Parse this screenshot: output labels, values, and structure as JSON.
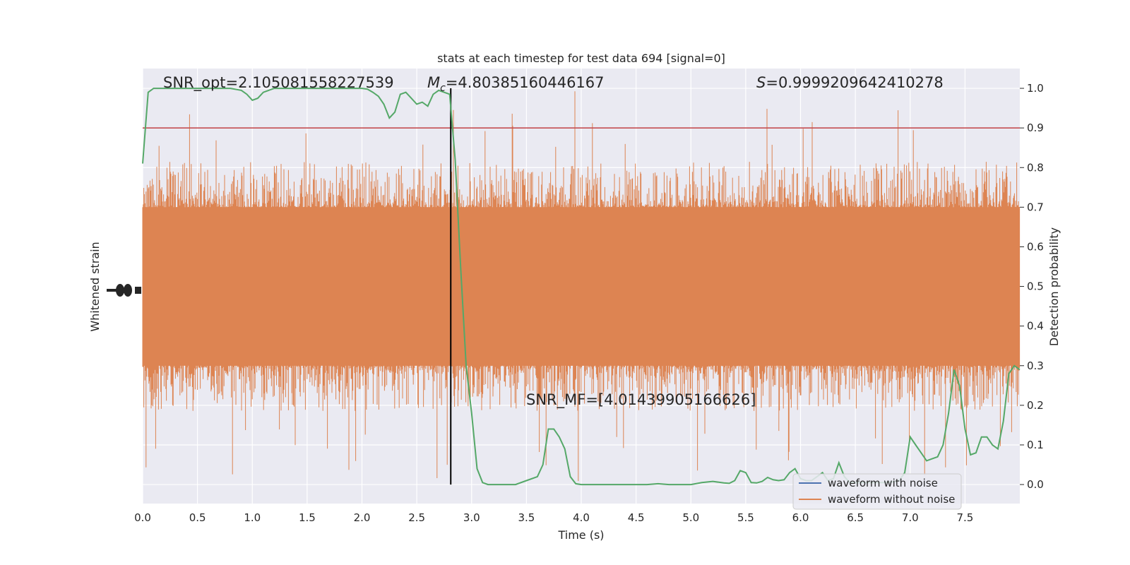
{
  "chart_data": {
    "type": "line",
    "title": "stats at each timestep for test data 694 [signal=0]",
    "xlabel": "Time (s)",
    "ylabel_left": "Whitened strain",
    "ylabel_right": "Detection probability",
    "xlim": [
      0,
      8
    ],
    "ylim_right": [
      -0.048,
      1.05
    ],
    "x_ticks": [
      "0.0",
      "0.5",
      "1.0",
      "1.5",
      "2.0",
      "2.5",
      "3.0",
      "3.5",
      "4.0",
      "4.5",
      "5.0",
      "5.5",
      "6.0",
      "6.5",
      "7.0",
      "7.5"
    ],
    "y_ticks_right": [
      "0.0",
      "0.1",
      "0.2",
      "0.3",
      "0.4",
      "0.5",
      "0.6",
      "0.7",
      "0.8",
      "0.9",
      "1.0"
    ],
    "annotations": {
      "snr_opt": "SNR_opt=2.105081558227539",
      "mc_symbol": "M",
      "mc_sub": "c",
      "mc_value": "=4.80385160446167",
      "s_symbol": "S",
      "s_value": "=0.9999209642410278",
      "snr_mf": "SNR_MF=[4.01439905166626]"
    },
    "threshold": 0.9,
    "vertical_marker_x": 2.81,
    "detection_probability": {
      "x": [
        0.0,
        0.05,
        0.1,
        0.15,
        0.2,
        0.3,
        0.4,
        0.5,
        0.6,
        0.7,
        0.8,
        0.9,
        0.95,
        1.0,
        1.05,
        1.1,
        1.15,
        1.2,
        1.3,
        1.4,
        1.5,
        1.6,
        1.7,
        1.8,
        1.9,
        2.0,
        2.05,
        2.1,
        2.15,
        2.2,
        2.25,
        2.3,
        2.35,
        2.4,
        2.45,
        2.5,
        2.55,
        2.6,
        2.65,
        2.7,
        2.75,
        2.8,
        2.85,
        2.9,
        2.95,
        3.0,
        3.05,
        3.1,
        3.15,
        3.2,
        3.3,
        3.4,
        3.5,
        3.6,
        3.65,
        3.7,
        3.75,
        3.8,
        3.85,
        3.9,
        3.95,
        4.0,
        4.05,
        4.1,
        4.2,
        4.3,
        4.4,
        4.5,
        4.6,
        4.7,
        4.8,
        4.9,
        5.0,
        5.1,
        5.2,
        5.3,
        5.35,
        5.4,
        5.45,
        5.5,
        5.55,
        5.6,
        5.65,
        5.7,
        5.75,
        5.8,
        5.85,
        5.9,
        5.95,
        6.0,
        6.05,
        6.1,
        6.15,
        6.2,
        6.25,
        6.3,
        6.35,
        6.4,
        6.45,
        6.5,
        6.55,
        6.6,
        6.65,
        6.7,
        6.75,
        6.8,
        6.85,
        6.9,
        6.95,
        7.0,
        7.05,
        7.1,
        7.15,
        7.2,
        7.25,
        7.3,
        7.35,
        7.4,
        7.45,
        7.5,
        7.55,
        7.6,
        7.65,
        7.7,
        7.75,
        7.8,
        7.85,
        7.9,
        7.95,
        8.0
      ],
      "y": [
        0.81,
        0.99,
        1.0,
        1.0,
        1.0,
        1.0,
        1.0,
        1.0,
        1.0,
        1.0,
        1.0,
        0.995,
        0.985,
        0.97,
        0.975,
        0.99,
        0.995,
        1.0,
        1.0,
        1.0,
        1.0,
        1.0,
        1.0,
        1.0,
        1.0,
        1.0,
        0.998,
        0.99,
        0.98,
        0.96,
        0.925,
        0.94,
        0.985,
        0.99,
        0.975,
        0.96,
        0.965,
        0.955,
        0.985,
        0.995,
        0.99,
        0.985,
        0.82,
        0.55,
        0.3,
        0.18,
        0.04,
        0.005,
        0.0,
        0.0,
        0.0,
        0.0,
        0.01,
        0.02,
        0.05,
        0.14,
        0.14,
        0.12,
        0.09,
        0.02,
        0.002,
        0.0,
        0.0,
        0.0,
        0.0,
        0.0,
        0.0,
        0.0,
        0.0,
        0.002,
        0.0,
        0.0,
        0.0,
        0.005,
        0.008,
        0.004,
        0.003,
        0.01,
        0.035,
        0.03,
        0.005,
        0.004,
        0.008,
        0.018,
        0.012,
        0.01,
        0.012,
        0.03,
        0.04,
        0.015,
        0.01,
        0.01,
        0.02,
        0.03,
        0.01,
        0.015,
        0.055,
        0.02,
        0.005,
        0.005,
        0.005,
        0.005,
        0.005,
        0.005,
        0.005,
        0.006,
        0.007,
        0.01,
        0.03,
        0.12,
        0.1,
        0.08,
        0.06,
        0.065,
        0.07,
        0.1,
        0.18,
        0.29,
        0.25,
        0.14,
        0.075,
        0.08,
        0.12,
        0.12,
        0.1,
        0.09,
        0.16,
        0.28,
        0.3,
        0.29
      ]
    },
    "legend": {
      "position": "lower-right",
      "entries": [
        {
          "label": "waveform with noise",
          "color": "#4c72b0"
        },
        {
          "label": "waveform without noise",
          "color": "#dd8452"
        }
      ]
    },
    "colors": {
      "background": "#eaeaf2",
      "grid": "#ffffff",
      "strain": "#dd8452",
      "probability": "#55a868",
      "threshold": "#c44e52",
      "marker": "#000000"
    },
    "grid": true
  }
}
